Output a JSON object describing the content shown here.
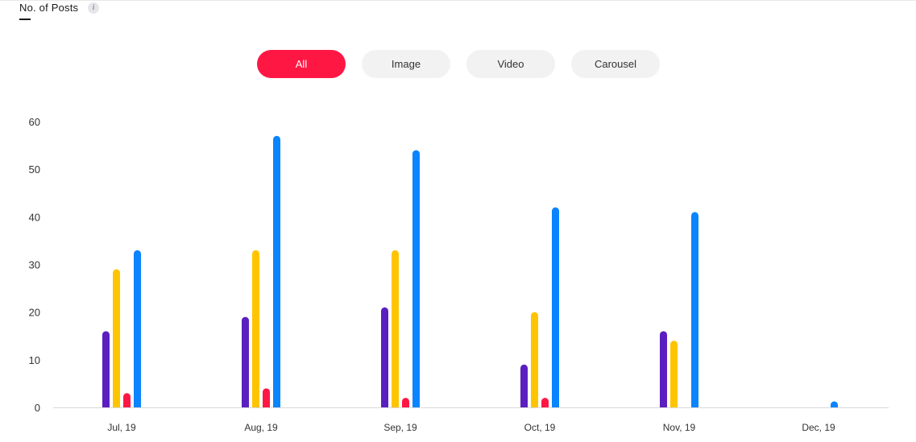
{
  "header": {
    "title": "No. of Posts",
    "info_icon": "info-icon"
  },
  "filters": [
    {
      "label": "All",
      "active": true
    },
    {
      "label": "Image",
      "active": false
    },
    {
      "label": "Video",
      "active": false
    },
    {
      "label": "Carousel",
      "active": false
    }
  ],
  "colors": {
    "accent": "#ff1744",
    "series": [
      "#5b1fbf",
      "#ffc400",
      "#ff1744",
      "#0a84ff"
    ]
  },
  "chart_data": {
    "type": "bar",
    "categories": [
      "Jul, 19",
      "Aug, 19",
      "Sep, 19",
      "Oct, 19",
      "Nov, 19",
      "Dec, 19"
    ],
    "series": [
      {
        "values": [
          16,
          19,
          21,
          9,
          16,
          0
        ]
      },
      {
        "values": [
          29,
          33,
          33,
          20,
          14,
          0
        ]
      },
      {
        "values": [
          3,
          4,
          2,
          2,
          0,
          0
        ]
      },
      {
        "values": [
          33,
          57,
          54,
          42,
          41,
          1
        ]
      }
    ],
    "yticks": [
      0,
      10,
      20,
      30,
      40,
      50,
      60
    ],
    "ylim": [
      0,
      60
    ],
    "grid": false,
    "legend": "none"
  }
}
